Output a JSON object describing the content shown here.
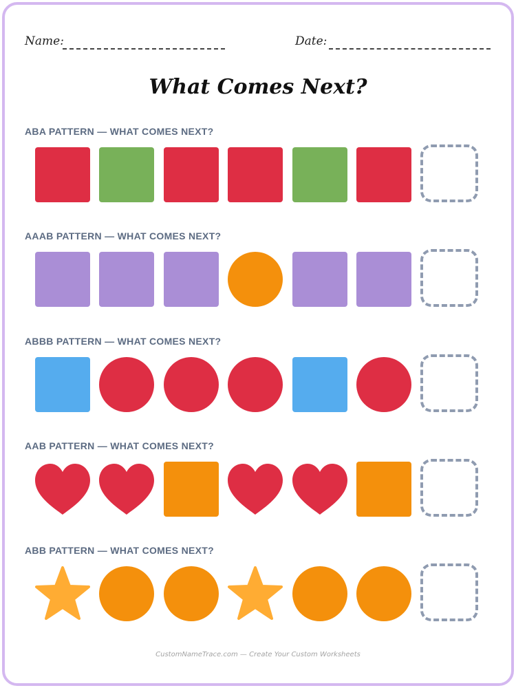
{
  "header": {
    "name_label": "Name:",
    "date_label": "Date:"
  },
  "title": "What Comes Next?",
  "colors": {
    "red": "#de2e44",
    "green": "#78b159",
    "purple": "#aa8ed6",
    "orange": "#f4900c",
    "blue": "#55acee",
    "star": "#ffac33",
    "answer_box": "#8f9bb0",
    "heading": "#5c6b82",
    "frame": "#d4b8f0"
  },
  "patterns": [
    {
      "heading": "ABA PATTERN — WHAT COMES NEXT?",
      "items": [
        {
          "shape": "square",
          "color": "red",
          "icon": "red-square-icon"
        },
        {
          "shape": "square",
          "color": "green",
          "icon": "green-square-icon"
        },
        {
          "shape": "square",
          "color": "red",
          "icon": "red-square-icon"
        },
        {
          "shape": "square",
          "color": "red",
          "icon": "red-square-icon"
        },
        {
          "shape": "square",
          "color": "green",
          "icon": "green-square-icon"
        },
        {
          "shape": "square",
          "color": "red",
          "icon": "red-square-icon"
        }
      ]
    },
    {
      "heading": "AAAB PATTERN — WHAT COMES NEXT?",
      "items": [
        {
          "shape": "square",
          "color": "purple",
          "icon": "purple-square-icon"
        },
        {
          "shape": "square",
          "color": "purple",
          "icon": "purple-square-icon"
        },
        {
          "shape": "square",
          "color": "purple",
          "icon": "purple-square-icon"
        },
        {
          "shape": "circle",
          "color": "orange",
          "icon": "orange-circle-icon"
        },
        {
          "shape": "square",
          "color": "purple",
          "icon": "purple-square-icon"
        },
        {
          "shape": "square",
          "color": "purple",
          "icon": "purple-square-icon"
        }
      ]
    },
    {
      "heading": "ABBB PATTERN — WHAT COMES NEXT?",
      "items": [
        {
          "shape": "square",
          "color": "blue",
          "icon": "blue-square-icon"
        },
        {
          "shape": "circle",
          "color": "red",
          "icon": "red-circle-icon"
        },
        {
          "shape": "circle",
          "color": "red",
          "icon": "red-circle-icon"
        },
        {
          "shape": "circle",
          "color": "red",
          "icon": "red-circle-icon"
        },
        {
          "shape": "square",
          "color": "blue",
          "icon": "blue-square-icon"
        },
        {
          "shape": "circle",
          "color": "red",
          "icon": "red-circle-icon"
        }
      ]
    },
    {
      "heading": "AAB PATTERN — WHAT COMES NEXT?",
      "items": [
        {
          "shape": "heart",
          "color": "red",
          "icon": "red-heart-icon"
        },
        {
          "shape": "heart",
          "color": "red",
          "icon": "red-heart-icon"
        },
        {
          "shape": "square",
          "color": "orange",
          "icon": "orange-square-icon"
        },
        {
          "shape": "heart",
          "color": "red",
          "icon": "red-heart-icon"
        },
        {
          "shape": "heart",
          "color": "red",
          "icon": "red-heart-icon"
        },
        {
          "shape": "square",
          "color": "orange",
          "icon": "orange-square-icon"
        }
      ]
    },
    {
      "heading": "ABB PATTERN — WHAT COMES NEXT?",
      "items": [
        {
          "shape": "star",
          "color": "star",
          "icon": "yellow-star-icon"
        },
        {
          "shape": "circle",
          "color": "orange",
          "icon": "orange-circle-icon"
        },
        {
          "shape": "circle",
          "color": "orange",
          "icon": "orange-circle-icon"
        },
        {
          "shape": "star",
          "color": "star",
          "icon": "yellow-star-icon"
        },
        {
          "shape": "circle",
          "color": "orange",
          "icon": "orange-circle-icon"
        },
        {
          "shape": "circle",
          "color": "orange",
          "icon": "orange-circle-icon"
        }
      ]
    }
  ],
  "footer": "CustomNameTrace.com — Create Your Custom Worksheets"
}
